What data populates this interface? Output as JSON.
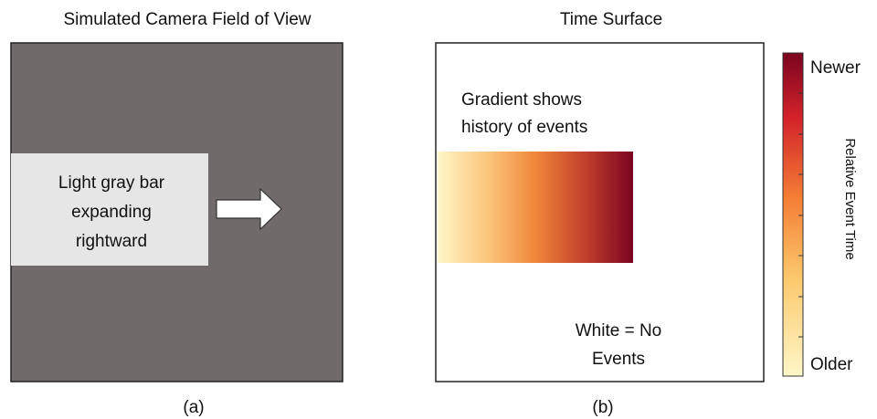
{
  "panel_a": {
    "title": "Simulated Camera Field of View",
    "bar_label": [
      "Light gray bar",
      "expanding",
      "rightward"
    ],
    "caption": "(a)"
  },
  "panel_b": {
    "title": "Time Surface",
    "gradient_label": [
      "Gradient shows",
      "history of events"
    ],
    "white_label": [
      "White = No",
      "Events"
    ],
    "caption": "(b)"
  },
  "colorbar": {
    "top_label": "Newer",
    "bottom_label": "Older",
    "axis_label": "Relative Event Time"
  }
}
